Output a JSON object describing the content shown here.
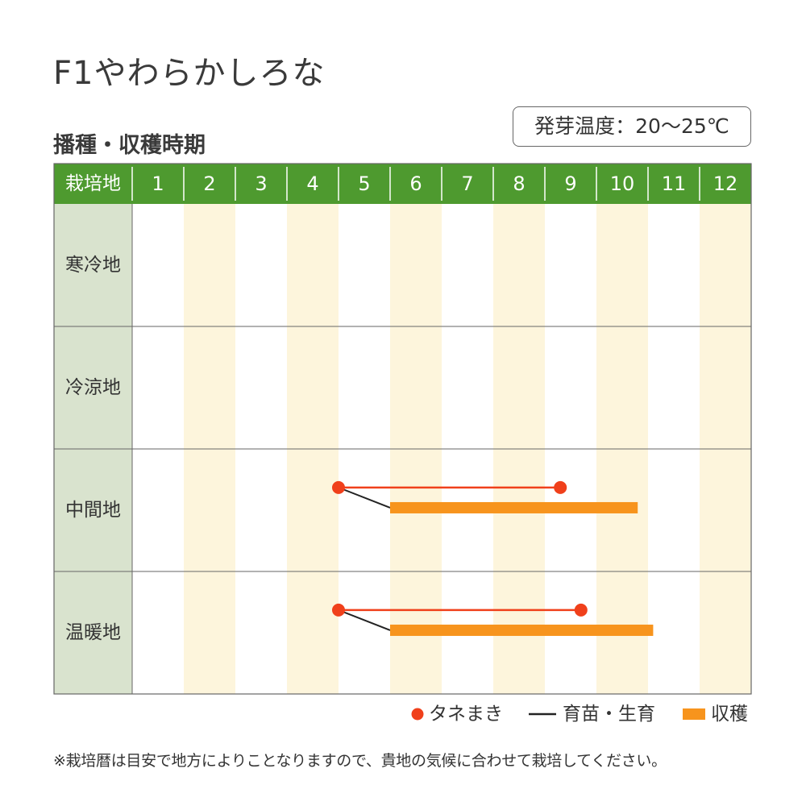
{
  "title": "F1やわらかしろな",
  "subtitle": "播種・収穫時期",
  "badge": "発芽温度：20〜25℃",
  "note": "※栽培暦は目安で地方によりことなりますので、貴地の気候に合わせて栽培してください。",
  "colors": {
    "header_green": "#4e9a2f",
    "region_col": "#d9e3ce",
    "alt_month": "#fdf5dc",
    "sowing": "#f0401b",
    "seedling": "#222222",
    "harvest": "#f7941d",
    "grid": "#666666"
  },
  "chart_data": {
    "type": "gantt",
    "header": "栽培地",
    "months": [
      "1",
      "2",
      "3",
      "4",
      "5",
      "6",
      "7",
      "8",
      "9",
      "10",
      "11",
      "12"
    ],
    "regions": [
      {
        "name": "寒冷地",
        "sowing": null,
        "harvest": null
      },
      {
        "name": "冷涼地",
        "sowing": null,
        "harvest": null
      },
      {
        "name": "中間地",
        "sowing": [
          5.0,
          9.3
        ],
        "harvest": [
          6.0,
          10.8
        ]
      },
      {
        "name": "温暖地",
        "sowing": [
          5.0,
          9.7
        ],
        "harvest": [
          6.0,
          11.1
        ]
      }
    ],
    "legend": [
      {
        "key": "sowing",
        "label": "タネまき"
      },
      {
        "key": "seedling",
        "label": "育苗・生育"
      },
      {
        "key": "harvest",
        "label": "収穫"
      }
    ]
  }
}
